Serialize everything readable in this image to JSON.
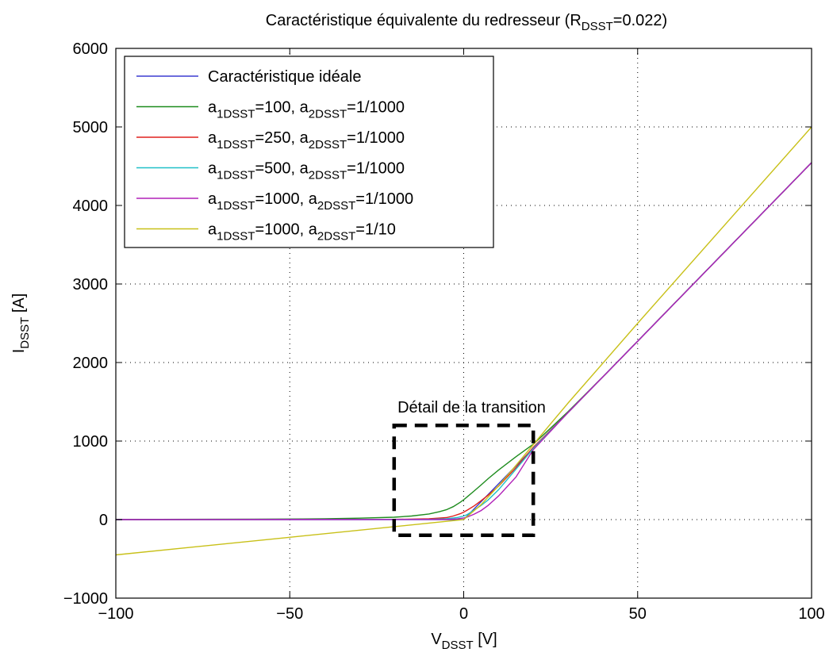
{
  "chart_data": {
    "type": "line",
    "title": {
      "main": "Caractéristique équivalente du redresseur (R",
      "sub": "DSST",
      "tail": "=0.022)"
    },
    "xlabel": {
      "main": "V",
      "sub": "DSST",
      "unit": " [V]"
    },
    "ylabel": {
      "main": "I",
      "sub": "DSST",
      "unit": " [A]"
    },
    "xlim": [
      -100,
      100
    ],
    "ylim": [
      -1000,
      6000
    ],
    "xticks": [
      -100,
      -50,
      0,
      50,
      100
    ],
    "xtick_labels": [
      "−100",
      "−50",
      "0",
      "50",
      "100"
    ],
    "yticks": [
      -1000,
      0,
      1000,
      2000,
      3000,
      4000,
      5000,
      6000
    ],
    "ytick_labels": [
      "−1000",
      "0",
      "1000",
      "2000",
      "3000",
      "4000",
      "5000",
      "6000"
    ],
    "grid": true,
    "legend_position": "top-left",
    "series": [
      {
        "name": {
          "main": "Caractéristique idéale"
        },
        "color": "#3b3bd1",
        "x": [
          -100,
          0,
          100
        ],
        "y": [
          0,
          0,
          4545
        ]
      },
      {
        "name": {
          "a": "a",
          "s1": "1DSST",
          "m": "=100, a",
          "s2": "2DSST",
          "t": "=1/1000"
        },
        "color": "#1e8c1e",
        "x": [
          -100,
          -60,
          -40,
          -30,
          -20,
          -15,
          -10,
          -7,
          -5,
          -3,
          -1,
          0,
          1,
          3,
          5,
          7,
          10,
          15,
          20,
          25,
          30,
          40,
          50,
          60,
          70,
          80,
          90,
          100
        ],
        "y": [
          2,
          5,
          10,
          18,
          30,
          45,
          72,
          100,
          125,
          165,
          220,
          253,
          290,
          365,
          440,
          520,
          630,
          800,
          960,
          1165,
          1375,
          1818,
          2272,
          2727,
          3181,
          3636,
          4090,
          4545
        ]
      },
      {
        "name": {
          "a": "a",
          "s1": "1DSST",
          "m": "=250, a",
          "s2": "2DSST",
          "t": "=1/1000"
        },
        "color": "#e0201e",
        "x": [
          -100,
          -20,
          -10,
          -5,
          -3,
          -1,
          0,
          1,
          3,
          5,
          7,
          10,
          15,
          20,
          25,
          30,
          50,
          100
        ],
        "y": [
          0,
          3,
          10,
          25,
          45,
          75,
          95,
          120,
          175,
          240,
          310,
          425,
          660,
          920,
          1140,
          1364,
          2272,
          4545
        ]
      },
      {
        "name": {
          "a": "a",
          "s1": "1DSST",
          "m": "=500, a",
          "s2": "2DSST",
          "t": "=1/1000"
        },
        "color": "#20c0c8",
        "x": [
          -100,
          -10,
          -5,
          -2,
          0,
          1,
          3,
          5,
          7,
          10,
          15,
          20,
          30,
          50,
          100
        ],
        "y": [
          0,
          3,
          10,
          25,
          45,
          65,
          120,
          180,
          250,
          380,
          640,
          905,
          1364,
          2272,
          4545
        ]
      },
      {
        "name": {
          "a": "a",
          "s1": "1DSST",
          "m": "=1000, a",
          "s2": "2DSST",
          "t": "=1/1000"
        },
        "color": "#b020b8",
        "x": [
          -100,
          -5,
          -2,
          0,
          1,
          2,
          3,
          5,
          7,
          10,
          15,
          20,
          30,
          50,
          100
        ],
        "y": [
          0,
          2,
          8,
          20,
          32,
          50,
          70,
          115,
          180,
          300,
          540,
          890,
          1364,
          2272,
          4545
        ]
      },
      {
        "name": {
          "a": "a",
          "s1": "1DSST",
          "m": "=1000, a",
          "s2": "2DSST",
          "t": "=1/10"
        },
        "color": "#c8c018",
        "x": [
          -100,
          -50,
          0,
          5,
          10,
          15,
          20,
          25,
          30,
          50,
          100
        ],
        "y": [
          -450,
          -225,
          0,
          190,
          430,
          690,
          955,
          1220,
          1485,
          2500,
          5000
        ]
      }
    ],
    "annotation": {
      "text": "Détail de la transition",
      "box_x": [
        -20,
        20
      ],
      "box_y": [
        -200,
        1200
      ]
    }
  }
}
